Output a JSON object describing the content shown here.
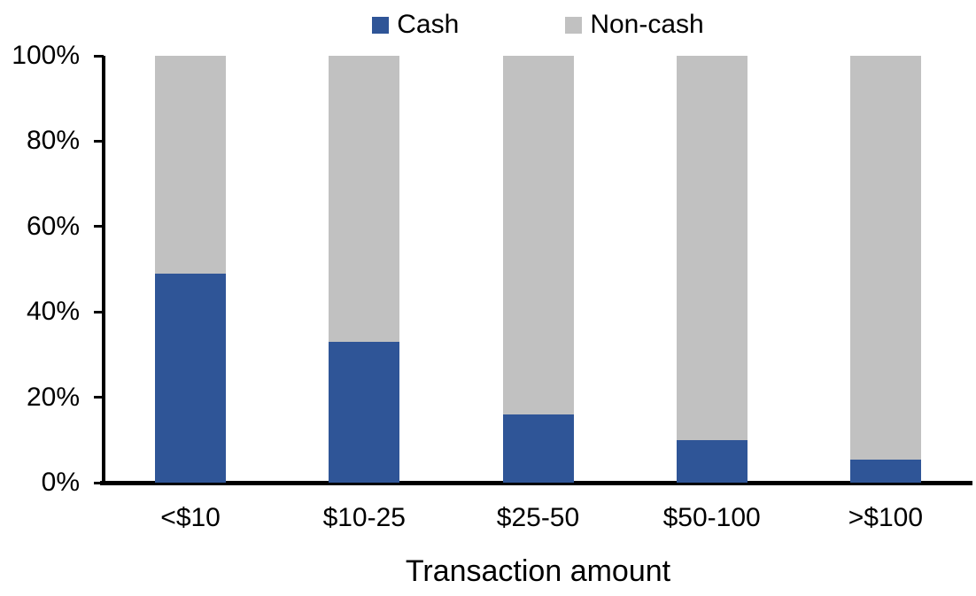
{
  "legend": {
    "items": [
      {
        "label": "Cash",
        "color": "#2F5597",
        "icon": "legend-swatch-square"
      },
      {
        "label": "Non-cash",
        "color": "#C1C1C1",
        "icon": "legend-swatch-square"
      }
    ]
  },
  "chart_data": {
    "type": "bar",
    "stacked": true,
    "units": "percent",
    "xlabel": "Transaction amount",
    "ylabel": "",
    "categories": [
      "<$10",
      "$10-25",
      "$25-50",
      "$50-100",
      ">$100"
    ],
    "series": [
      {
        "name": "Cash",
        "color": "#2F5597",
        "values": [
          49,
          33,
          16,
          10,
          5.5
        ]
      },
      {
        "name": "Non-cash",
        "color": "#C1C1C1",
        "values": [
          51,
          67,
          84,
          90,
          94.5
        ]
      }
    ],
    "ylim": [
      0,
      100
    ],
    "yticks": [
      0,
      20,
      40,
      60,
      80,
      100
    ],
    "ytick_labels": [
      "0%",
      "20%",
      "40%",
      "60%",
      "80%",
      "100%"
    ],
    "grid": false,
    "legend_position": "top-center"
  },
  "colors": {
    "axis": "#000000",
    "text": "#000000",
    "background": "#FFFFFF",
    "cash": "#2F5597",
    "noncash": "#C1C1C1"
  }
}
